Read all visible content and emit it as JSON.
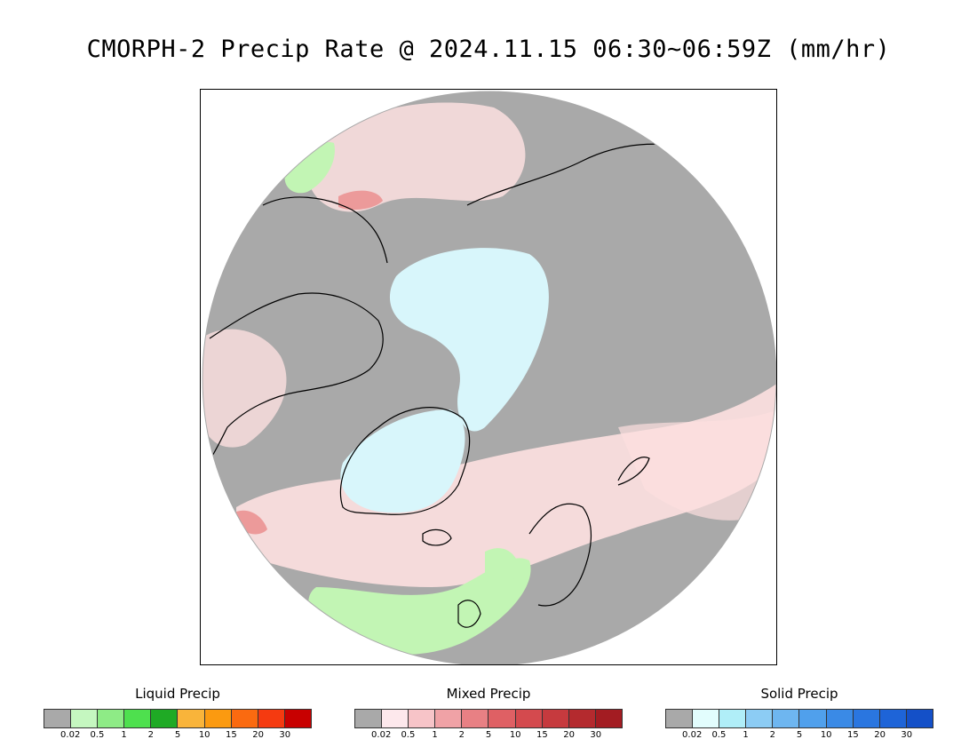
{
  "title": "CMORPH-2 Precip Rate @ 2024.11.15 06:30~06:59Z (mm/hr)",
  "map": {
    "projection": "polar-stereographic-north",
    "background_color": "#a9a9a9",
    "regions": [
      {
        "name": "arctic-ocean-snow",
        "category": "solid",
        "color": "#d8f6fb"
      },
      {
        "name": "greenland-snow",
        "category": "solid",
        "color": "#d8f6fb"
      },
      {
        "name": "north-atlantic-mixed",
        "category": "mixed",
        "color": "#fde0e0"
      },
      {
        "name": "bering-mixed",
        "category": "mixed",
        "color": "#fde0e0"
      },
      {
        "name": "north-atlantic-rain",
        "category": "liquid",
        "color": "#c2f5b4"
      },
      {
        "name": "alaska-heavy-mixed",
        "category": "mixed",
        "color": "#ec9a9a"
      }
    ]
  },
  "legends": [
    {
      "title": "Liquid Precip",
      "colors": [
        "#a9a9a9",
        "#c5f7c0",
        "#8eeb86",
        "#4ee04e",
        "#1faa25",
        "#f9b43a",
        "#fb9a10",
        "#fa6a10",
        "#f53a10",
        "#c80000"
      ],
      "ticks": [
        "0.02",
        "0.5",
        "1",
        "2",
        "5",
        "10",
        "15",
        "20",
        "30"
      ]
    },
    {
      "title": "Mixed Precip",
      "colors": [
        "#a9a9a9",
        "#fde8ec",
        "#f7c4c8",
        "#f0a2a6",
        "#e88084",
        "#df6064",
        "#d44a4e",
        "#c63a3e",
        "#b42a2e",
        "#a31c22"
      ],
      "ticks": [
        "0.02",
        "0.5",
        "1",
        "2",
        "5",
        "10",
        "15",
        "20",
        "30"
      ]
    },
    {
      "title": "Solid Precip",
      "colors": [
        "#a9a9a9",
        "#e2fdfd",
        "#b0eef8",
        "#8cccf4",
        "#6eb6f0",
        "#50a0ec",
        "#3a8ae6",
        "#2a76e0",
        "#1e64d8",
        "#1450c8"
      ],
      "ticks": [
        "0.02",
        "0.5",
        "1",
        "2",
        "5",
        "10",
        "15",
        "20",
        "30"
      ]
    }
  ]
}
